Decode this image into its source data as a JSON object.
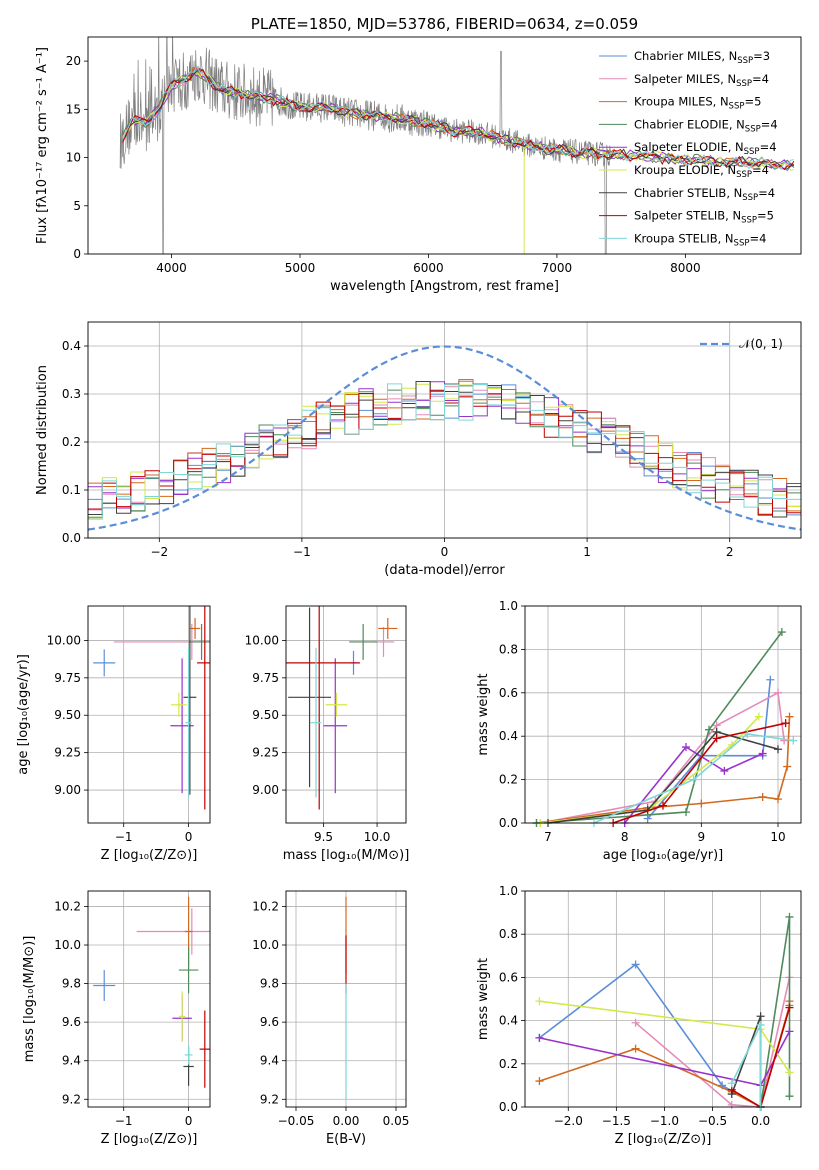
{
  "colors": {
    "Chabrier MILES": "#5b8ed9",
    "Salpeter MILES": "#e58bb8",
    "Kroupa MILES": "#d2691e",
    "Chabrier ELODIE": "#4f8a5a",
    "Salpeter ELODIE": "#9932cc",
    "Kroupa ELODIE": "#d4e84a",
    "Chabrier STELIB": "#404040",
    "Salpeter STELIB": "#c00000",
    "Kroupa STELIB": "#7fd6d6",
    "data": "#808080",
    "normal": "#5b8ed9"
  },
  "chart_data": [
    {
      "type": "line",
      "title": "PLATE=1850, MJD=53786, FIBERID=0634, z=0.059",
      "xlabel": "wavelength [Angstrom, rest frame]",
      "ylabel": "Flux [fλ10⁻¹⁷ erg cm⁻² s⁻¹ A⁻¹]",
      "xlim": [
        3350,
        8900
      ],
      "ylim": [
        0,
        22.5
      ],
      "xticks": [
        4000,
        5000,
        6000,
        7000,
        8000
      ],
      "yticks": [
        0,
        5,
        10,
        15,
        20
      ],
      "legend": "top-right",
      "series": [
        {
          "name": "Chabrier MILES",
          "nssp": "3"
        },
        {
          "name": "Salpeter MILES",
          "nssp": "4"
        },
        {
          "name": "Kroupa MILES",
          "nssp": "5"
        },
        {
          "name": "Chabrier ELODIE",
          "nssp": "4"
        },
        {
          "name": "Salpeter ELODIE",
          "nssp": "4"
        },
        {
          "name": "Kroupa ELODIE",
          "nssp": "4"
        },
        {
          "name": "Chabrier STELIB",
          "nssp": "4"
        },
        {
          "name": "Salpeter STELIB",
          "nssp": "5"
        },
        {
          "name": "Kroupa STELIB",
          "nssp": "4"
        }
      ],
      "model_continuum": [
        [
          3600,
          11.5
        ],
        [
          3700,
          14
        ],
        [
          3800,
          13.5
        ],
        [
          3900,
          15
        ],
        [
          4000,
          17.5
        ],
        [
          4100,
          18
        ],
        [
          4200,
          19
        ],
        [
          4400,
          17
        ],
        [
          4600,
          16.5
        ],
        [
          4800,
          16
        ],
        [
          5000,
          15.2
        ],
        [
          5200,
          15.2
        ],
        [
          5400,
          14.6
        ],
        [
          5600,
          14.3
        ],
        [
          5800,
          14
        ],
        [
          6000,
          13.5
        ],
        [
          6200,
          12.8
        ],
        [
          6400,
          12.6
        ],
        [
          6600,
          11.9
        ],
        [
          6800,
          11.2
        ],
        [
          7000,
          10.8
        ],
        [
          7200,
          10.5
        ],
        [
          7400,
          10.3
        ],
        [
          7600,
          10.2
        ],
        [
          7800,
          10
        ],
        [
          8000,
          9.8
        ],
        [
          8200,
          9.6
        ],
        [
          8400,
          9.5
        ],
        [
          8600,
          9.4
        ],
        [
          8800,
          9.2
        ]
      ],
      "data_xlim": [
        3600,
        7420
      ]
    },
    {
      "type": "line",
      "xlabel": "(data-model)/error",
      "ylabel": "Normed distribution",
      "xlim": [
        -2.5,
        2.5
      ],
      "ylim": [
        0,
        0.45
      ],
      "xticks": [
        -2,
        -1,
        0,
        1,
        2
      ],
      "yticks": [
        0.0,
        0.1,
        0.2,
        0.3,
        0.4
      ],
      "grid": true,
      "legend": "top-right",
      "legend_label": "𝒩(0, 1)",
      "bins": {
        "start": -2.5,
        "width": 0.1,
        "count": 50
      }
    },
    {
      "type": "scatter",
      "xlabel": "Z [log₁₀(Z/Z⊙)]",
      "ylabel": "age  [log₁₀(age/yr)]",
      "xlim": [
        -1.55,
        0.33
      ],
      "ylim": [
        8.78,
        10.23
      ],
      "xticks": [
        -1,
        0
      ],
      "yticks": [
        9.0,
        9.25,
        9.5,
        9.75,
        10.0
      ],
      "grid": true,
      "points": [
        {
          "series": "Chabrier MILES",
          "x": -1.3,
          "y": 9.85,
          "xerr": 0.17,
          "yerr": 0.09
        },
        {
          "series": "Salpeter MILES",
          "x": 0.05,
          "y": 9.99,
          "xerr": 1.2,
          "yerr": 0.12
        },
        {
          "series": "Kroupa MILES",
          "x": 0.1,
          "y": 10.08,
          "xerr": 0.08,
          "yerr": 0.07
        },
        {
          "series": "Chabrier ELODIE",
          "x": 0.2,
          "y": 9.99,
          "xerr": 0.2,
          "yerr": 0.12
        },
        {
          "series": "Salpeter ELODIE",
          "x": -0.1,
          "y": 9.43,
          "xerr": 0.18,
          "yerr": 0.45
        },
        {
          "series": "Kroupa ELODIE",
          "x": -0.15,
          "y": 9.57,
          "xerr": 0.12,
          "yerr": 0.08
        },
        {
          "series": "Chabrier STELIB",
          "x": 0.02,
          "y": 9.62,
          "xerr": 0.1,
          "yerr": 0.65
        },
        {
          "series": "Salpeter STELIB",
          "x": 0.25,
          "y": 9.85,
          "xerr": 0.12,
          "yerr": 0.98
        },
        {
          "series": "Kroupa STELIB",
          "x": 0.0,
          "y": 9.45,
          "xerr": 0.05,
          "yerr": 0.5
        }
      ]
    },
    {
      "type": "scatter",
      "xlabel": "mass [log₁₀(M/M⊙)]",
      "xlim": [
        9.15,
        10.27
      ],
      "ylim": [
        8.78,
        10.23
      ],
      "xticks": [
        9.5,
        10.0
      ],
      "yticks": [
        9.0,
        9.25,
        9.5,
        9.75,
        10.0
      ],
      "grid": true,
      "points": [
        {
          "series": "Chabrier MILES",
          "x": 9.78,
          "y": 9.85,
          "xerr": 0.03,
          "yerr": 0.08
        },
        {
          "series": "Salpeter MILES",
          "x": 10.06,
          "y": 9.99,
          "xerr": 0.1,
          "yerr": 0.1
        },
        {
          "series": "Kroupa MILES",
          "x": 10.1,
          "y": 10.08,
          "xerr": 0.09,
          "yerr": 0.07
        },
        {
          "series": "Chabrier ELODIE",
          "x": 9.87,
          "y": 9.99,
          "xerr": 0.13,
          "yerr": 0.12
        },
        {
          "series": "Salpeter ELODIE",
          "x": 9.61,
          "y": 9.43,
          "xerr": 0.11,
          "yerr": 0.45
        },
        {
          "series": "Kroupa ELODIE",
          "x": 9.62,
          "y": 9.57,
          "xerr": 0.1,
          "yerr": 0.08
        },
        {
          "series": "Chabrier STELIB",
          "x": 9.37,
          "y": 9.62,
          "xerr": 0.2,
          "yerr": 0.6
        },
        {
          "series": "Salpeter STELIB",
          "x": 9.46,
          "y": 9.85,
          "xerr": 0.38,
          "yerr": 0.98
        },
        {
          "series": "Kroupa STELIB",
          "x": 9.43,
          "y": 9.45,
          "xerr": 0.05,
          "yerr": 0.5
        }
      ]
    },
    {
      "type": "line",
      "xlabel": "age  [log₁₀(age/yr)]",
      "ylabel": "mass weight",
      "xlim": [
        6.7,
        10.3
      ],
      "ylim": [
        0,
        1
      ],
      "xticks": [
        7,
        8,
        9,
        10
      ],
      "yticks": [
        0.0,
        0.2,
        0.4,
        0.6,
        0.8,
        1.0
      ],
      "grid": true,
      "series": [
        {
          "name": "Chabrier MILES",
          "x": [
            8.3,
            9.0,
            9.8,
            9.9
          ],
          "y": [
            0.02,
            0.31,
            0.31,
            0.66
          ]
        },
        {
          "name": "Salpeter MILES",
          "x": [
            6.9,
            8.4,
            9.2,
            10.0,
            10.08
          ],
          "y": [
            0.0,
            0.1,
            0.45,
            0.6,
            0.38
          ]
        },
        {
          "name": "Kroupa MILES",
          "x": [
            6.85,
            8.3,
            9.0,
            9.8,
            10.0,
            10.12,
            10.15
          ],
          "y": [
            0.0,
            0.07,
            0.09,
            0.12,
            0.11,
            0.26,
            0.49
          ]
        },
        {
          "name": "Chabrier ELODIE",
          "x": [
            6.85,
            8.8,
            9.1,
            10.05
          ],
          "y": [
            0.0,
            0.05,
            0.43,
            0.88
          ]
        },
        {
          "name": "Salpeter ELODIE",
          "x": [
            8.0,
            8.8,
            9.3,
            9.8
          ],
          "y": [
            0.0,
            0.35,
            0.24,
            0.32
          ]
        },
        {
          "name": "Kroupa ELODIE",
          "x": [
            6.9,
            8.3,
            9.4,
            9.75
          ],
          "y": [
            0.0,
            0.06,
            0.36,
            0.49
          ]
        },
        {
          "name": "Chabrier STELIB",
          "x": [
            7.0,
            8.3,
            9.2,
            10.0
          ],
          "y": [
            0.0,
            0.06,
            0.42,
            0.34
          ]
        },
        {
          "name": "Salpeter STELIB",
          "x": [
            7.85,
            8.5,
            9.2,
            10.1
          ],
          "y": [
            0.0,
            0.08,
            0.39,
            0.46
          ]
        },
        {
          "name": "Kroupa STELIB",
          "x": [
            7.6,
            8.9,
            9.6,
            10.2
          ],
          "y": [
            0.0,
            0.2,
            0.41,
            0.38
          ]
        }
      ]
    },
    {
      "type": "scatter",
      "xlabel": "Z [log₁₀(Z/Z⊙)]",
      "ylabel": "mass [log₁₀(M/M⊙)]",
      "xlim": [
        -1.55,
        0.33
      ],
      "ylim": [
        9.16,
        10.28
      ],
      "xticks": [
        -1,
        0
      ],
      "yticks": [
        9.2,
        9.4,
        9.6,
        9.8,
        10.0,
        10.2
      ],
      "grid": true,
      "points": [
        {
          "series": "Chabrier MILES",
          "x": -1.3,
          "y": 9.79,
          "xerr": 0.17,
          "yerr": 0.08
        },
        {
          "series": "Salpeter MILES",
          "x": 0.05,
          "y": 10.07,
          "xerr": 0.85,
          "yerr": 0.12
        },
        {
          "series": "Kroupa MILES",
          "x": 0.0,
          "y": 10.07,
          "xerr": 0.06,
          "yerr": 0.18
        },
        {
          "series": "Chabrier ELODIE",
          "x": 0.0,
          "y": 9.87,
          "xerr": 0.15,
          "yerr": 0.12
        },
        {
          "series": "Salpeter ELODIE",
          "x": -0.1,
          "y": 9.62,
          "xerr": 0.15,
          "yerr": 0.12
        },
        {
          "series": "Kroupa ELODIE",
          "x": -0.1,
          "y": 9.63,
          "xerr": 0.05,
          "yerr": 0.13
        },
        {
          "series": "Chabrier STELIB",
          "x": 0.0,
          "y": 9.37,
          "xerr": 0.08,
          "yerr": 0.1
        },
        {
          "series": "Salpeter STELIB",
          "x": 0.25,
          "y": 9.46,
          "xerr": 0.08,
          "yerr": 0.2
        },
        {
          "series": "Kroupa STELIB",
          "x": 0.0,
          "y": 9.43,
          "xerr": 0.06,
          "yerr": 0.05
        }
      ]
    },
    {
      "type": "scatter",
      "xlabel": "E(B-V)",
      "xlim": [
        -0.06,
        0.06
      ],
      "ylim": [
        9.16,
        10.28
      ],
      "xticks": [
        -0.05,
        0.0,
        0.05
      ],
      "yticks": [
        9.2,
        9.4,
        9.6,
        9.8,
        10.0,
        10.2
      ],
      "grid": true,
      "points": [
        {
          "series": "Kroupa MILES",
          "x": 0.0,
          "y": 10.05,
          "xerr": 0.0,
          "yerr": 0.2
        },
        {
          "series": "Salpeter STELIB",
          "x": 0.0,
          "y": 9.9,
          "xerr": 0.0,
          "yerr": 0.15
        },
        {
          "series": "Kroupa STELIB",
          "x": 0.0,
          "y": 9.5,
          "xerr": 0.0,
          "yerr": 0.3
        }
      ]
    },
    {
      "type": "line",
      "xlabel": "Z [log₁₀(Z/Z⊙)]",
      "ylabel": "mass weight",
      "xlim": [
        -2.45,
        0.42
      ],
      "ylim": [
        0,
        1
      ],
      "xticks": [
        -2.0,
        -1.5,
        -1.0,
        -0.5,
        0.0
      ],
      "yticks": [
        0.0,
        0.2,
        0.4,
        0.6,
        0.8,
        1.0
      ],
      "grid": true,
      "series": [
        {
          "name": "Chabrier MILES",
          "x": [
            -2.3,
            -1.3,
            -0.4,
            0.0
          ],
          "y": [
            0.32,
            0.66,
            0.1,
            0.0
          ]
        },
        {
          "name": "Salpeter MILES",
          "x": [
            -1.3,
            -0.3,
            0.0,
            0.3
          ],
          "y": [
            0.39,
            0.01,
            0.0,
            0.6
          ]
        },
        {
          "name": "Kroupa MILES",
          "x": [
            -2.3,
            -1.3,
            -0.3,
            0.0,
            0.3,
            0.3
          ],
          "y": [
            0.12,
            0.27,
            0.07,
            0.0,
            0.47,
            0.49
          ]
        },
        {
          "name": "Chabrier ELODIE",
          "x": [
            0.0,
            0.3,
            0.3
          ],
          "y": [
            0.0,
            0.88,
            0.05
          ]
        },
        {
          "name": "Salpeter ELODIE",
          "x": [
            -2.3,
            0.0,
            0.3
          ],
          "y": [
            0.32,
            0.1,
            0.35
          ]
        },
        {
          "name": "Kroupa ELODIE",
          "x": [
            -2.3,
            0.0,
            0.3
          ],
          "y": [
            0.49,
            0.36,
            0.16
          ]
        },
        {
          "name": "Chabrier STELIB",
          "x": [
            -0.3,
            0.0,
            0.0
          ],
          "y": [
            0.06,
            0.42,
            0.0
          ]
        },
        {
          "name": "Salpeter STELIB",
          "x": [
            -0.3,
            0.0,
            0.3
          ],
          "y": [
            0.08,
            0.0,
            0.46
          ]
        },
        {
          "name": "Kroupa STELIB",
          "x": [
            -0.3,
            0.0,
            0.0
          ],
          "y": [
            0.11,
            0.38,
            0.0
          ]
        }
      ]
    }
  ]
}
